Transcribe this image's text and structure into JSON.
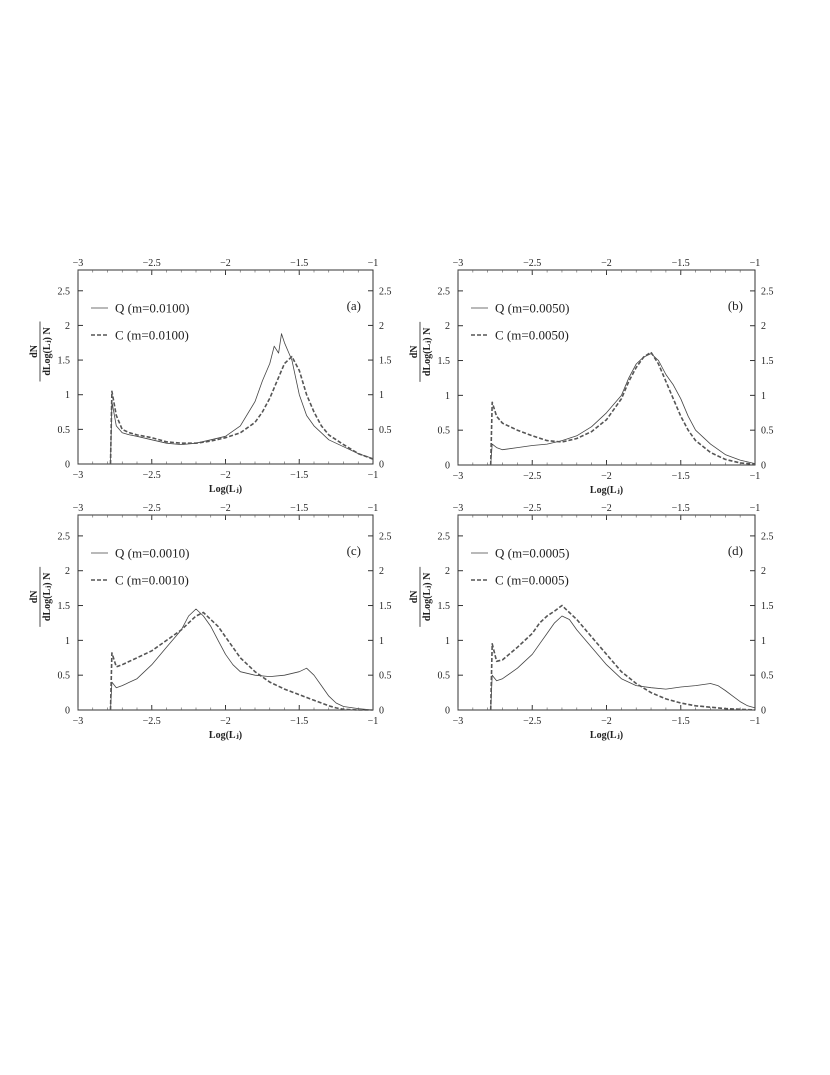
{
  "chart_data": [
    {
      "type": "line",
      "panel_label": "(a)",
      "xlabel": "Log(Lⱼ)",
      "ylabel_num": "dN",
      "ylabel_den": "dLog(Lⱼ) N",
      "xlim": [
        -3,
        -1
      ],
      "ylim": [
        0,
        2.8
      ],
      "xticks": [
        "−3",
        "−2.5",
        "−2",
        "−1.5",
        "−1"
      ],
      "yticks": [
        "0",
        "0.5",
        "1",
        "1.5",
        "2",
        "2.5"
      ],
      "legend_position": "top-left",
      "grid": false,
      "series": [
        {
          "name": "Q (m=0.0100)",
          "style": "solid",
          "x": [
            -2.78,
            -2.77,
            -2.74,
            -2.7,
            -2.65,
            -2.6,
            -2.5,
            -2.4,
            -2.3,
            -2.2,
            -2.1,
            -2.0,
            -1.9,
            -1.8,
            -1.75,
            -1.7,
            -1.67,
            -1.64,
            -1.62,
            -1.6,
            -1.57,
            -1.55,
            -1.5,
            -1.45,
            -1.4,
            -1.35,
            -1.3,
            -1.2,
            -1.1,
            -1.0
          ],
          "y": [
            0.0,
            0.9,
            0.55,
            0.45,
            0.42,
            0.4,
            0.35,
            0.3,
            0.28,
            0.3,
            0.35,
            0.4,
            0.55,
            0.9,
            1.2,
            1.45,
            1.7,
            1.6,
            1.88,
            1.75,
            1.6,
            1.5,
            1.0,
            0.7,
            0.55,
            0.45,
            0.35,
            0.25,
            0.15,
            0.08
          ]
        },
        {
          "name": "C (m=0.0100)",
          "style": "dashed",
          "x": [
            -2.78,
            -2.77,
            -2.74,
            -2.7,
            -2.65,
            -2.6,
            -2.5,
            -2.4,
            -2.3,
            -2.2,
            -2.1,
            -2.0,
            -1.9,
            -1.8,
            -1.75,
            -1.7,
            -1.65,
            -1.6,
            -1.55,
            -1.5,
            -1.45,
            -1.4,
            -1.35,
            -1.3,
            -1.2,
            -1.1,
            -1.0
          ],
          "y": [
            0.0,
            1.05,
            0.7,
            0.5,
            0.45,
            0.42,
            0.38,
            0.32,
            0.3,
            0.3,
            0.33,
            0.38,
            0.45,
            0.6,
            0.75,
            0.95,
            1.2,
            1.45,
            1.55,
            1.35,
            1.0,
            0.75,
            0.55,
            0.42,
            0.28,
            0.15,
            0.07
          ]
        }
      ]
    },
    {
      "type": "line",
      "panel_label": "(b)",
      "xlabel": "Log(Lⱼ)",
      "ylabel_num": "dN",
      "ylabel_den": "dLog(Lⱼ) N",
      "xlim": [
        -3,
        -1
      ],
      "ylim": [
        0,
        2.8
      ],
      "xticks": [
        "−3",
        "−2.5",
        "−2",
        "−1.5",
        "−1"
      ],
      "yticks": [
        "0",
        "0.5",
        "1",
        "1.5",
        "2",
        "2.5"
      ],
      "legend_position": "top-left",
      "grid": false,
      "series": [
        {
          "name": "Q (m=0.0050)",
          "style": "solid",
          "x": [
            -2.78,
            -2.77,
            -2.74,
            -2.7,
            -2.6,
            -2.5,
            -2.4,
            -2.3,
            -2.2,
            -2.1,
            -2.0,
            -1.9,
            -1.85,
            -1.8,
            -1.75,
            -1.7,
            -1.65,
            -1.6,
            -1.55,
            -1.5,
            -1.45,
            -1.4,
            -1.3,
            -1.2,
            -1.1,
            -1.0
          ],
          "y": [
            0.0,
            0.3,
            0.25,
            0.22,
            0.25,
            0.28,
            0.3,
            0.35,
            0.42,
            0.55,
            0.75,
            1.0,
            1.25,
            1.45,
            1.55,
            1.6,
            1.5,
            1.3,
            1.15,
            0.95,
            0.7,
            0.5,
            0.3,
            0.15,
            0.07,
            0.02
          ]
        },
        {
          "name": "C (m=0.0050)",
          "style": "dashed",
          "x": [
            -2.78,
            -2.77,
            -2.74,
            -2.7,
            -2.65,
            -2.6,
            -2.5,
            -2.4,
            -2.3,
            -2.2,
            -2.1,
            -2.0,
            -1.9,
            -1.85,
            -1.8,
            -1.75,
            -1.7,
            -1.65,
            -1.6,
            -1.55,
            -1.5,
            -1.45,
            -1.4,
            -1.3,
            -1.2,
            -1.1,
            -1.0
          ],
          "y": [
            0.0,
            0.9,
            0.7,
            0.6,
            0.55,
            0.5,
            0.42,
            0.35,
            0.33,
            0.38,
            0.48,
            0.65,
            0.95,
            1.2,
            1.4,
            1.55,
            1.62,
            1.45,
            1.2,
            0.95,
            0.7,
            0.5,
            0.35,
            0.18,
            0.08,
            0.03,
            0.01
          ]
        }
      ]
    },
    {
      "type": "line",
      "panel_label": "(c)",
      "xlabel": "Log(Lⱼ)",
      "ylabel_num": "dN",
      "ylabel_den": "dLog(Lⱼ) N",
      "xlim": [
        -3,
        -1
      ],
      "ylim": [
        0,
        2.8
      ],
      "xticks": [
        "−3",
        "−2.5",
        "−2",
        "−1.5",
        "−1"
      ],
      "yticks": [
        "0",
        "0.5",
        "1",
        "1.5",
        "2",
        "2.5"
      ],
      "legend_position": "top-left",
      "grid": false,
      "series": [
        {
          "name": "Q (m=0.0010)",
          "style": "solid",
          "x": [
            -2.78,
            -2.77,
            -2.74,
            -2.7,
            -2.6,
            -2.5,
            -2.4,
            -2.3,
            -2.25,
            -2.2,
            -2.15,
            -2.1,
            -2.05,
            -2.0,
            -1.95,
            -1.9,
            -1.8,
            -1.7,
            -1.6,
            -1.5,
            -1.45,
            -1.4,
            -1.35,
            -1.3,
            -1.25,
            -1.2,
            -1.1,
            -1.0
          ],
          "y": [
            0.0,
            0.4,
            0.32,
            0.35,
            0.45,
            0.65,
            0.9,
            1.15,
            1.35,
            1.45,
            1.35,
            1.2,
            1.0,
            0.8,
            0.65,
            0.55,
            0.5,
            0.48,
            0.5,
            0.55,
            0.6,
            0.5,
            0.35,
            0.2,
            0.1,
            0.05,
            0.02,
            0.0
          ]
        },
        {
          "name": "C (m=0.0010)",
          "style": "dashed",
          "x": [
            -2.78,
            -2.77,
            -2.74,
            -2.7,
            -2.6,
            -2.5,
            -2.4,
            -2.3,
            -2.25,
            -2.2,
            -2.15,
            -2.1,
            -2.05,
            -2.0,
            -1.95,
            -1.9,
            -1.8,
            -1.7,
            -1.6,
            -1.5,
            -1.4,
            -1.35,
            -1.3,
            -1.25,
            -1.2,
            -1.1,
            -1.0
          ],
          "y": [
            0.0,
            0.82,
            0.62,
            0.65,
            0.75,
            0.85,
            1.0,
            1.15,
            1.25,
            1.35,
            1.4,
            1.3,
            1.2,
            1.05,
            0.9,
            0.75,
            0.55,
            0.4,
            0.3,
            0.22,
            0.14,
            0.1,
            0.06,
            0.03,
            0.01,
            0.0,
            0.0
          ]
        }
      ]
    },
    {
      "type": "line",
      "panel_label": "(d)",
      "xlabel": "Log(Lⱼ)",
      "ylabel_num": "dN",
      "ylabel_den": "dLog(Lⱼ) N",
      "xlim": [
        -3,
        -1
      ],
      "ylim": [
        0,
        2.8
      ],
      "xticks": [
        "−3",
        "−2.5",
        "−2",
        "−1.5",
        "−1"
      ],
      "yticks": [
        "0",
        "0.5",
        "1",
        "1.5",
        "2",
        "2.5"
      ],
      "legend_position": "top-left",
      "grid": false,
      "series": [
        {
          "name": "Q (m=0.0005)",
          "style": "solid",
          "x": [
            -2.78,
            -2.77,
            -2.74,
            -2.7,
            -2.6,
            -2.5,
            -2.45,
            -2.4,
            -2.35,
            -2.3,
            -2.25,
            -2.2,
            -2.1,
            -2.0,
            -1.9,
            -1.8,
            -1.7,
            -1.6,
            -1.5,
            -1.4,
            -1.3,
            -1.25,
            -1.2,
            -1.15,
            -1.1,
            -1.05,
            -1.0
          ],
          "y": [
            0.0,
            0.5,
            0.42,
            0.45,
            0.6,
            0.8,
            0.95,
            1.1,
            1.25,
            1.35,
            1.3,
            1.15,
            0.9,
            0.65,
            0.45,
            0.35,
            0.32,
            0.3,
            0.33,
            0.35,
            0.38,
            0.35,
            0.28,
            0.2,
            0.12,
            0.06,
            0.03
          ]
        },
        {
          "name": "C (m=0.0005)",
          "style": "dashed",
          "x": [
            -2.78,
            -2.77,
            -2.74,
            -2.7,
            -2.6,
            -2.5,
            -2.45,
            -2.4,
            -2.35,
            -2.3,
            -2.25,
            -2.2,
            -2.1,
            -2.0,
            -1.9,
            -1.8,
            -1.7,
            -1.6,
            -1.5,
            -1.4,
            -1.3,
            -1.2,
            -1.1,
            -1.0
          ],
          "y": [
            0.0,
            0.95,
            0.7,
            0.72,
            0.9,
            1.1,
            1.25,
            1.35,
            1.42,
            1.5,
            1.4,
            1.3,
            1.05,
            0.8,
            0.55,
            0.38,
            0.25,
            0.16,
            0.1,
            0.06,
            0.04,
            0.02,
            0.01,
            0.0
          ]
        }
      ]
    }
  ]
}
